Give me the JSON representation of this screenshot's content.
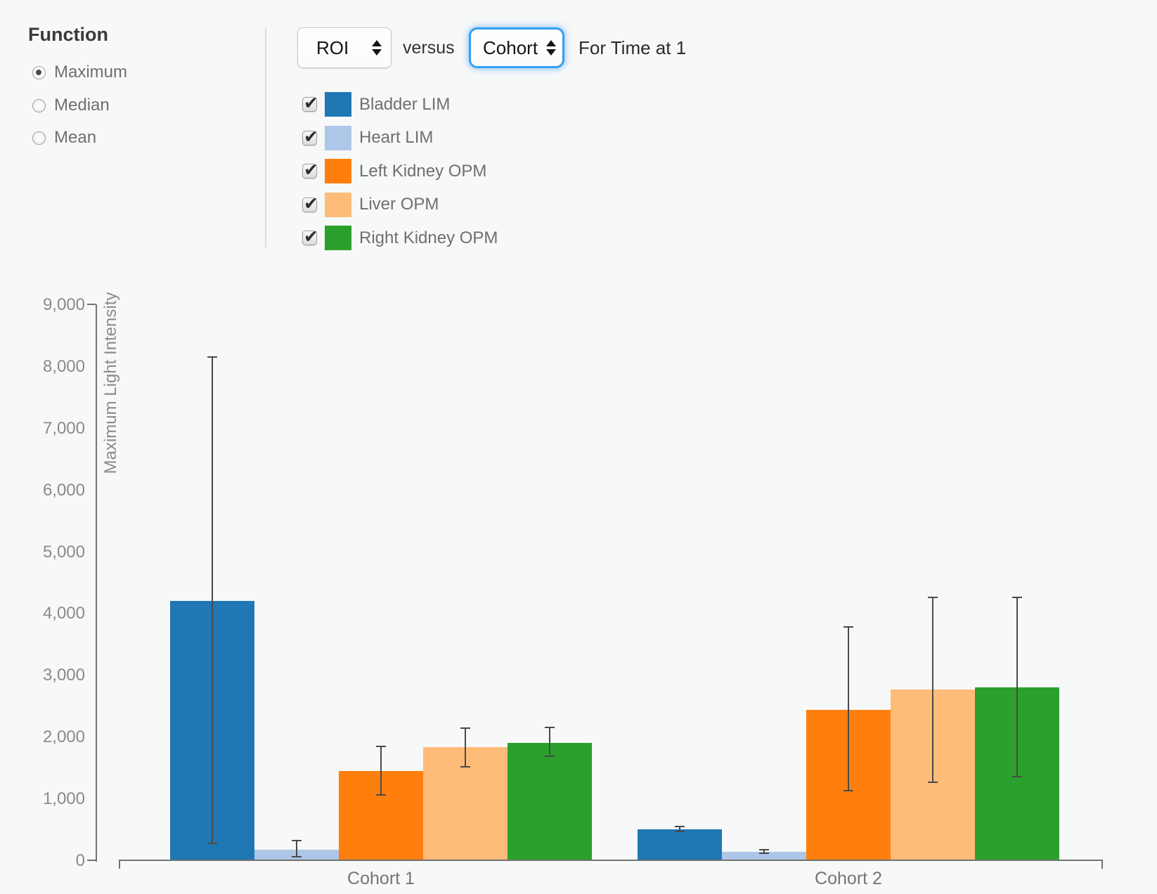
{
  "controls": {
    "function_label": "Function",
    "options": [
      {
        "label": "Maximum",
        "selected": true
      },
      {
        "label": "Median",
        "selected": false
      },
      {
        "label": "Mean",
        "selected": false
      }
    ],
    "x_select": {
      "value": "ROI"
    },
    "versus_label": "versus",
    "group_select": {
      "value": "Cohort",
      "focused": true
    },
    "suffix_label": "For Time at 1"
  },
  "legend": {
    "items": [
      {
        "label": "Bladder LIM",
        "color": "#1f77b4",
        "checked": true
      },
      {
        "label": "Heart LIM",
        "color": "#aec7e8",
        "checked": true
      },
      {
        "label": "Left Kidney OPM",
        "color": "#ff7f0e",
        "checked": true
      },
      {
        "label": "Liver OPM",
        "color": "#ffbb78",
        "checked": true
      },
      {
        "label": "Right Kidney OPM",
        "color": "#2ca02c",
        "checked": true
      }
    ]
  },
  "chart_data": {
    "type": "bar",
    "categories": [
      "Cohort 1",
      "Cohort 2"
    ],
    "series": [
      {
        "name": "Bladder LIM",
        "color": "#1f77b4",
        "values": [
          4200,
          500
        ],
        "error_low": [
          270,
          465
        ],
        "error_high": [
          8150,
          545
        ]
      },
      {
        "name": "Heart LIM",
        "color": "#aec7e8",
        "values": [
          170,
          135
        ],
        "error_low": [
          60,
          110
        ],
        "error_high": [
          320,
          165
        ]
      },
      {
        "name": "Left Kidney OPM",
        "color": "#ff7f0e",
        "values": [
          1440,
          2440
        ],
        "error_low": [
          1060,
          1130
        ],
        "error_high": [
          1840,
          3780
        ]
      },
      {
        "name": "Liver OPM",
        "color": "#ffbb78",
        "values": [
          1830,
          2760
        ],
        "error_low": [
          1510,
          1260
        ],
        "error_high": [
          2140,
          4250
        ]
      },
      {
        "name": "Right Kidney OPM",
        "color": "#2ca02c",
        "values": [
          1900,
          2800
        ],
        "error_low": [
          1680,
          1350
        ],
        "error_high": [
          2150,
          4250
        ]
      }
    ],
    "title": "",
    "xlabel": "",
    "ylabel": "Maximum Light Intensity",
    "ylim": [
      0,
      9000
    ],
    "ytick_step": 1000,
    "ytick_labels": [
      "0",
      "1,000",
      "2,000",
      "3,000",
      "4,000",
      "5,000",
      "6,000",
      "7,000",
      "8,000",
      "9,000"
    ],
    "grid": false,
    "error_bars": true,
    "legend_position": "top-left"
  }
}
